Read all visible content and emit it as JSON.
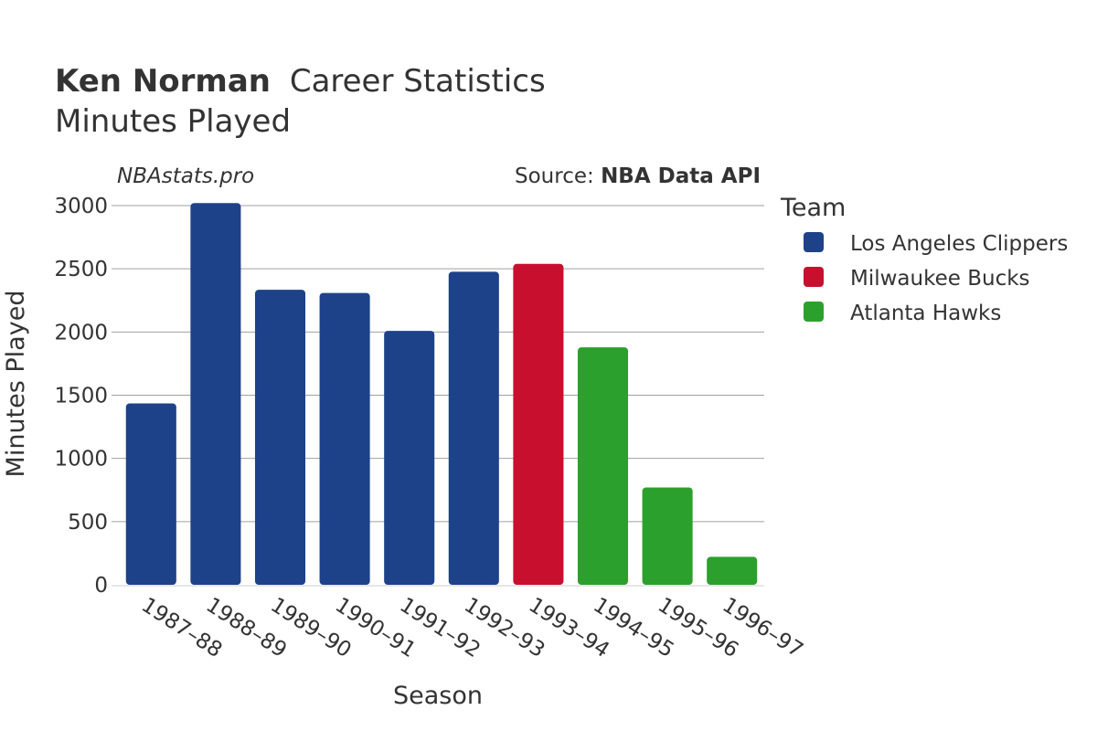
{
  "title": {
    "player": "Ken Norman",
    "rest": "Career Statistics",
    "subtitle": "Minutes Played"
  },
  "watermark": "NBAstats.pro",
  "source": {
    "prefix": "Source: ",
    "name": "NBA Data API"
  },
  "legend": {
    "title": "Team",
    "items": [
      {
        "label": "Los Angeles Clippers",
        "color": "#1d428a"
      },
      {
        "label": "Milwaukee Bucks",
        "color": "#c8102e"
      },
      {
        "label": "Atlanta Hawks",
        "color": "#2ca02c"
      }
    ]
  },
  "chart_data": {
    "type": "bar",
    "title": "Ken Norman Career Statistics",
    "subtitle": "Minutes Played",
    "xlabel": "Season",
    "ylabel": "Minutes Played",
    "ylim": [
      0,
      3000
    ],
    "yticks": [
      0,
      500,
      1000,
      1500,
      2000,
      2500,
      3000
    ],
    "grid": true,
    "legend_position": "right",
    "categories": [
      "1987–88",
      "1988–89",
      "1989–90",
      "1990–91",
      "1991–92",
      "1992–93",
      "1993–94",
      "1994–95",
      "1995–96",
      "1996–97"
    ],
    "values": [
      1435,
      3020,
      2334,
      2309,
      2009,
      2477,
      2539,
      1879,
      770,
      221
    ],
    "teams": [
      "Los Angeles Clippers",
      "Los Angeles Clippers",
      "Los Angeles Clippers",
      "Los Angeles Clippers",
      "Los Angeles Clippers",
      "Los Angeles Clippers",
      "Milwaukee Bucks",
      "Atlanta Hawks",
      "Atlanta Hawks",
      "Atlanta Hawks"
    ]
  }
}
